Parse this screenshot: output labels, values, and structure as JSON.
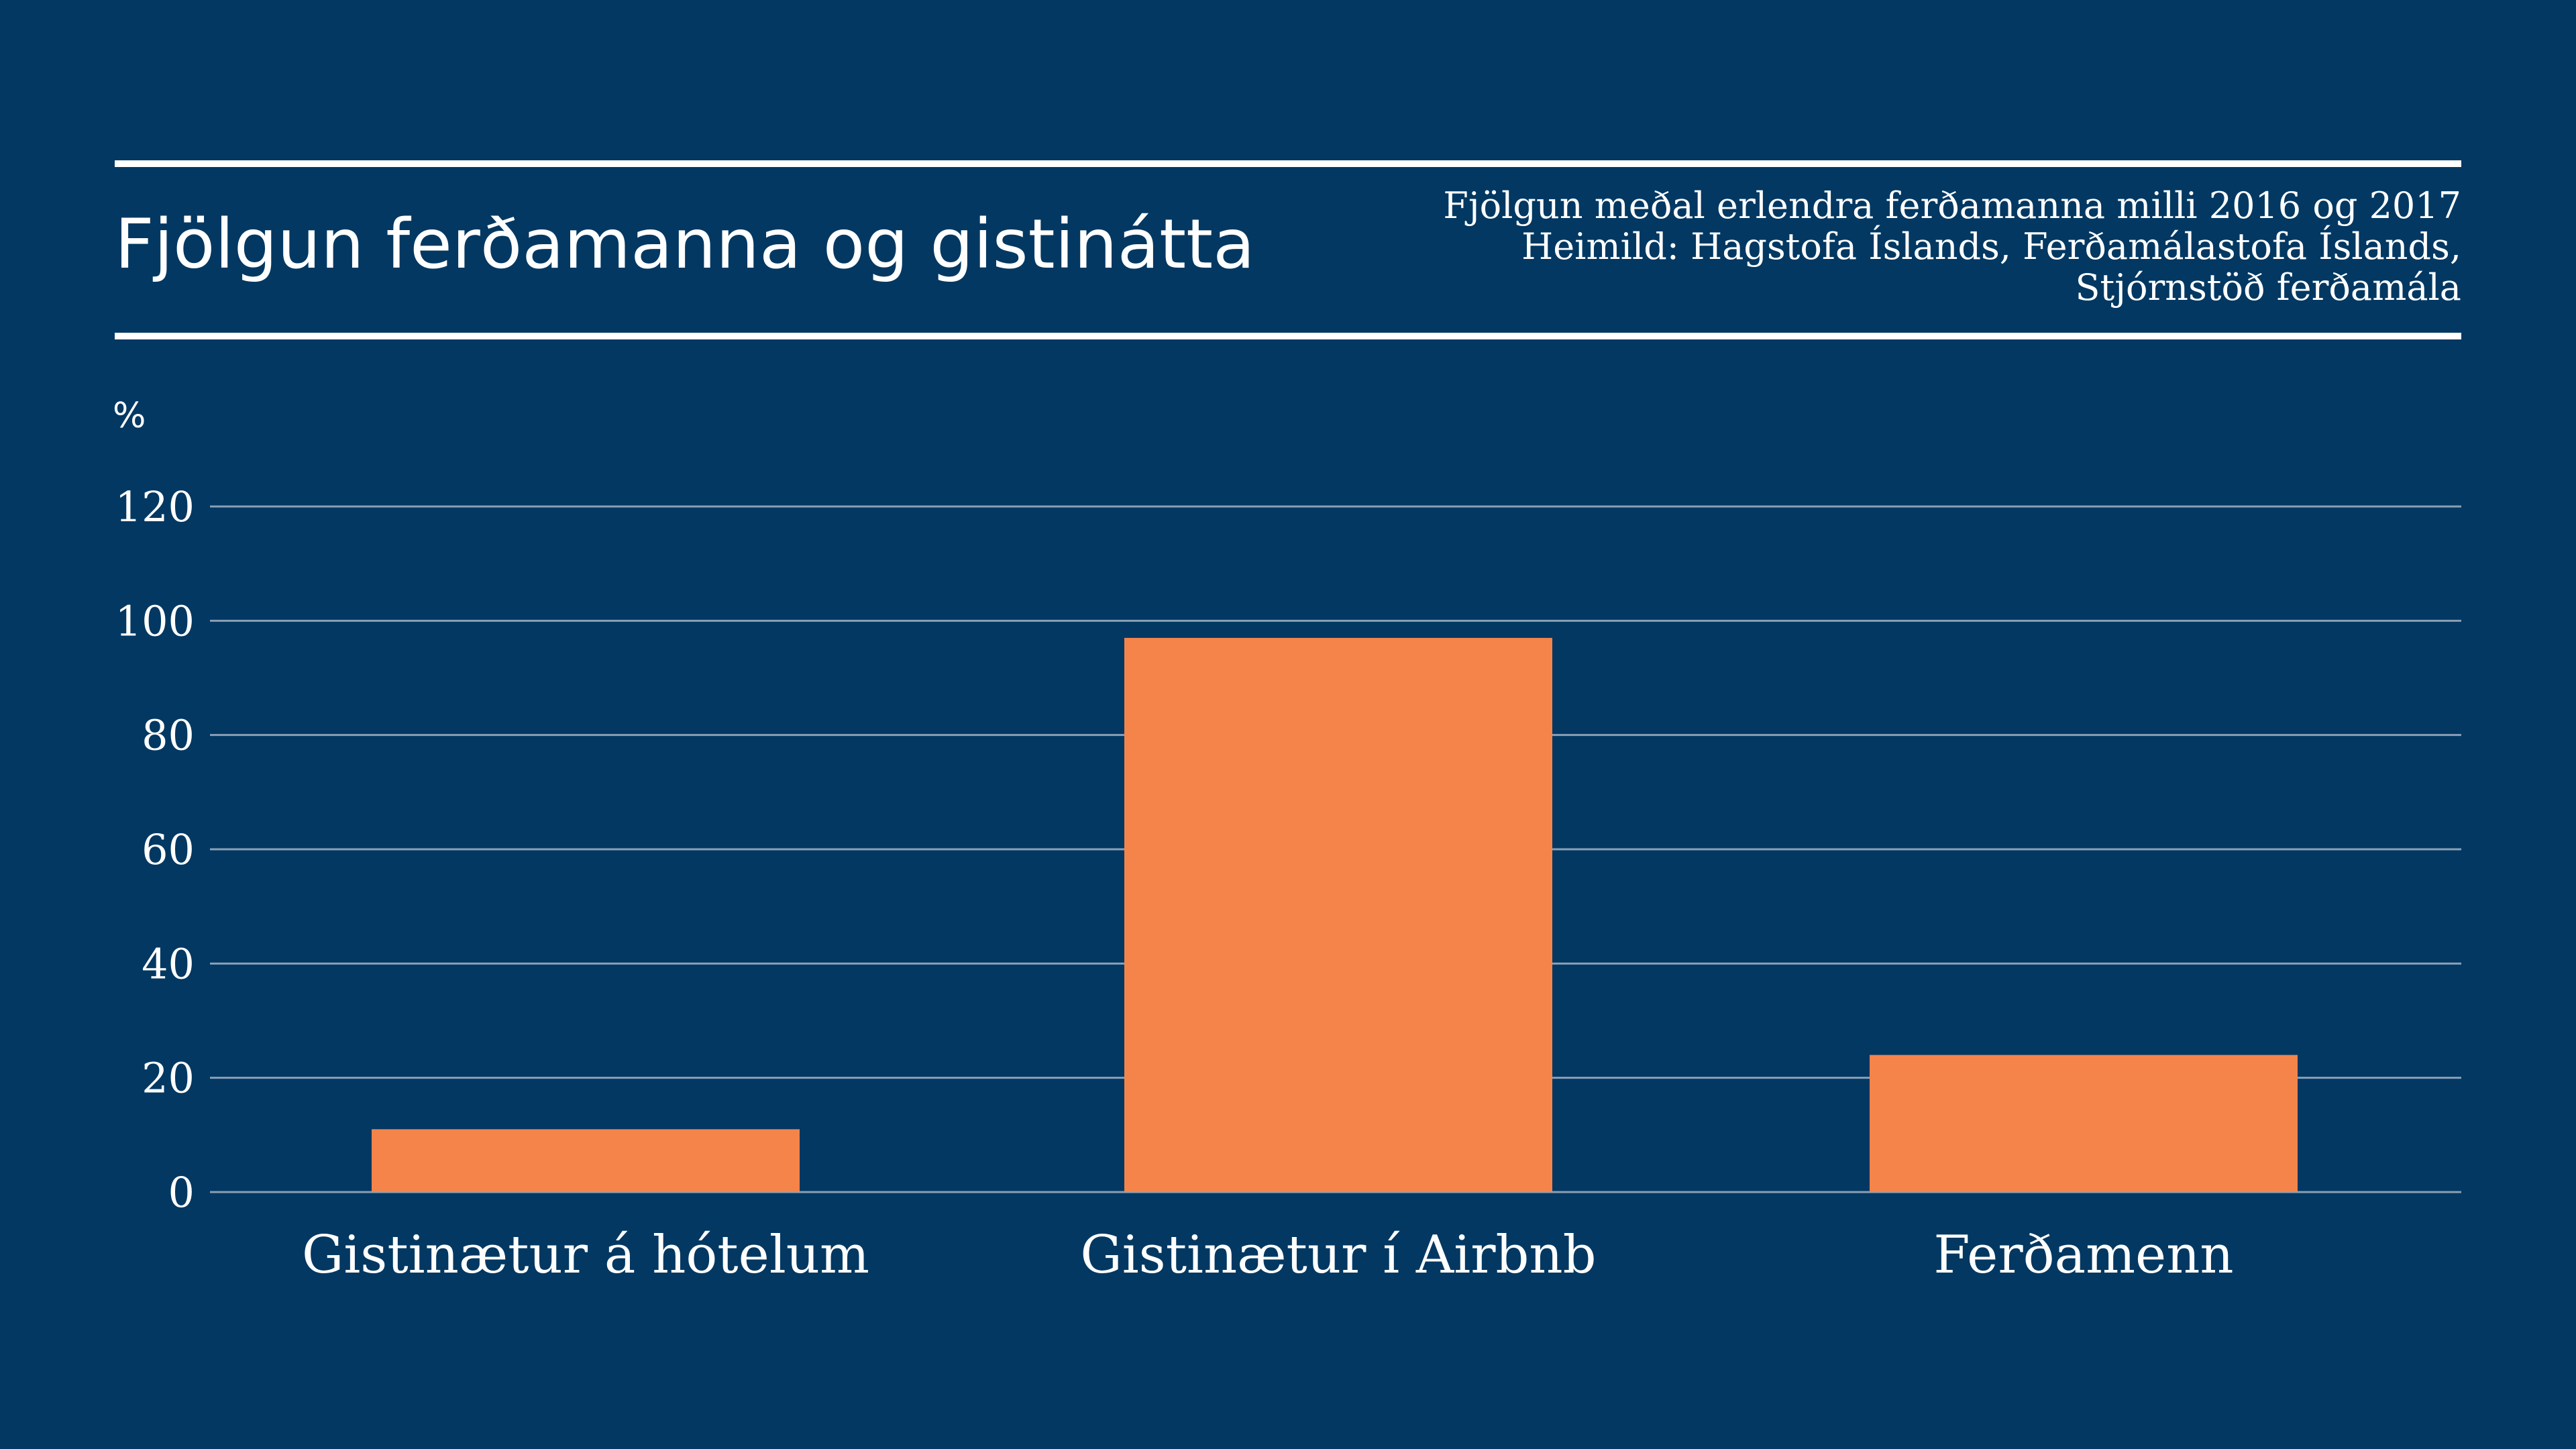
{
  "header": {
    "title": "Fjölgun ferðamanna og gistinátta",
    "subtitle_lines": [
      "Fjölgun meðal erlendra ferðamanna milli 2016 og 2017",
      "Heimild: Hagstofa Íslands, Ferðamálastofa Íslands,",
      "Stjórnstöð ferðamála"
    ]
  },
  "colors": {
    "background": "#023862",
    "bar": "#f5844a",
    "grid": "#8aa0b6",
    "text": "#ffffff"
  },
  "chart_data": {
    "type": "bar",
    "title": "Fjölgun ferðamanna og gistinátta",
    "subtitle": "Fjölgun meðal erlendra ferðamanna milli 2016 og 2017",
    "ylabel": "%",
    "categories": [
      "Gistinætur á hótelum",
      "Gistinætur í Airbnb",
      "Ferðamenn"
    ],
    "values": [
      11,
      97,
      24
    ],
    "ylim": [
      0,
      120
    ],
    "yticks": [
      0,
      20,
      40,
      60,
      80,
      100,
      120
    ],
    "grid": true,
    "legend": "none"
  }
}
